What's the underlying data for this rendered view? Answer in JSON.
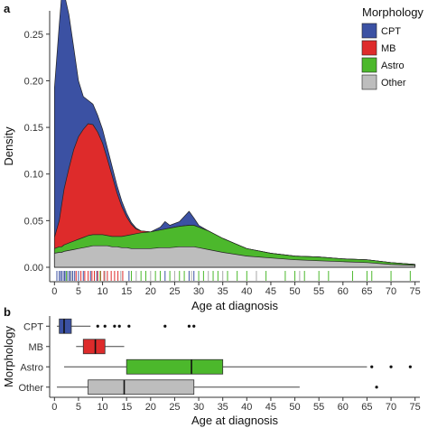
{
  "chart_data": [
    {
      "panel_label": "a",
      "type": "area",
      "xlabel": "Age at diagnosis",
      "ylabel": "Density",
      "xlim": [
        -1,
        76
      ],
      "ylim": [
        0,
        0.275
      ],
      "xticks": [
        0,
        5,
        10,
        15,
        20,
        25,
        30,
        35,
        40,
        45,
        50,
        55,
        60,
        65,
        70,
        75
      ],
      "yticks": [
        0,
        0.05,
        0.1,
        0.15,
        0.2,
        0.25
      ],
      "ytick_labels": [
        "0.00",
        "0.05",
        "0.10",
        "0.15",
        "0.20",
        "0.25"
      ],
      "stacked": true,
      "grid": false,
      "legend": {
        "title": "Morphology",
        "position": "top-right",
        "entries": [
          "CPT",
          "MB",
          "Astro",
          "Other"
        ]
      },
      "x": [
        0,
        1,
        1.5,
        2,
        3,
        4,
        5,
        6,
        7,
        8,
        9,
        10,
        11,
        12,
        13,
        14,
        15,
        16,
        17,
        18,
        20,
        22,
        23,
        24,
        26,
        28,
        29,
        30,
        32,
        35,
        40,
        45,
        50,
        55,
        60,
        65,
        70,
        75
      ],
      "series": [
        {
          "name": "Other",
          "color": "#bdbdbd",
          "values": [
            0.015,
            0.016,
            0.016,
            0.017,
            0.018,
            0.019,
            0.02,
            0.021,
            0.022,
            0.023,
            0.023,
            0.023,
            0.023,
            0.022,
            0.022,
            0.021,
            0.021,
            0.02,
            0.02,
            0.02,
            0.02,
            0.021,
            0.021,
            0.021,
            0.022,
            0.022,
            0.022,
            0.021,
            0.019,
            0.016,
            0.012,
            0.01,
            0.008,
            0.007,
            0.006,
            0.005,
            0.003,
            0.002
          ]
        },
        {
          "name": "Astro",
          "color": "#4cb82c",
          "values": [
            0.005,
            0.006,
            0.006,
            0.007,
            0.008,
            0.009,
            0.01,
            0.011,
            0.012,
            0.012,
            0.012,
            0.012,
            0.011,
            0.011,
            0.011,
            0.012,
            0.013,
            0.015,
            0.016,
            0.017,
            0.018,
            0.019,
            0.02,
            0.021,
            0.022,
            0.023,
            0.023,
            0.022,
            0.02,
            0.015,
            0.008,
            0.005,
            0.004,
            0.004,
            0.003,
            0.003,
            0.002,
            0.001
          ]
        },
        {
          "name": "MB",
          "color": "#de2b2b",
          "values": [
            0.012,
            0.028,
            0.045,
            0.06,
            0.08,
            0.098,
            0.11,
            0.116,
            0.12,
            0.118,
            0.11,
            0.098,
            0.082,
            0.065,
            0.047,
            0.032,
            0.02,
            0.011,
            0.005,
            0.002,
            0.0,
            0.0,
            0.0,
            0.0,
            0.0,
            0.0,
            0.0,
            0.0,
            0.0,
            0.0,
            0.0,
            0.0,
            0.0,
            0.0,
            0.0,
            0.0,
            0.0,
            0.0
          ]
        },
        {
          "name": "CPT",
          "color": "#3b51a3",
          "values": [
            0.16,
            0.21,
            0.225,
            0.21,
            0.165,
            0.11,
            0.06,
            0.035,
            0.025,
            0.022,
            0.018,
            0.015,
            0.012,
            0.01,
            0.008,
            0.006,
            0.004,
            0.002,
            0.001,
            0.0,
            0.0,
            0.003,
            0.008,
            0.003,
            0.005,
            0.015,
            0.008,
            0.002,
            0.0,
            0.0,
            0.0,
            0.0,
            0.0,
            0.0,
            0.0,
            0.0,
            0.0,
            0.0
          ]
        }
      ],
      "rug": [
        {
          "morphology": "CPT",
          "color": "#3b51a3",
          "x": [
            0.5,
            1,
            1.3,
            1.6,
            2,
            2.2,
            2.6,
            3,
            3.3,
            3.8,
            4.2,
            5,
            6,
            7.5,
            8.8,
            15.5,
            23,
            28,
            29
          ]
        },
        {
          "morphology": "MB",
          "color": "#de2b2b",
          "x": [
            4.5,
            5.5,
            6.3,
            7,
            7.8,
            8.3,
            9,
            9.6,
            10.3,
            11,
            11.8,
            12.5,
            13.2,
            14.2
          ]
        },
        {
          "morphology": "Astro",
          "color": "#4cb82c",
          "x": [
            2.5,
            9.5,
            16,
            18,
            19,
            21,
            22,
            24,
            26,
            27,
            30,
            31,
            33,
            34,
            36,
            38,
            40,
            44,
            48,
            50,
            52,
            55,
            57,
            62,
            65,
            66,
            70,
            74
          ]
        },
        {
          "morphology": "Other",
          "color": "#a8a8a8",
          "x": [
            3.5,
            10.5,
            13.8,
            17,
            20,
            25,
            28.5,
            32,
            35,
            42,
            51
          ]
        }
      ]
    },
    {
      "panel_label": "b",
      "type": "box",
      "xlabel": "Age at diagnosis",
      "ylabel": "Morphology",
      "xlim": [
        -1,
        76
      ],
      "xticks": [
        0,
        5,
        10,
        15,
        20,
        25,
        30,
        35,
        40,
        45,
        50,
        55,
        60,
        65,
        70,
        75
      ],
      "categories": [
        "CPT",
        "MB",
        "Astro",
        "Other"
      ],
      "boxes": [
        {
          "name": "CPT",
          "color": "#3b51a3",
          "whisker_low": 0.5,
          "q1": 1,
          "median": 2,
          "q3": 3.5,
          "whisker_high": 7.5,
          "outliers": [
            9,
            10.5,
            12.5,
            13.5,
            15.5,
            23,
            28,
            29
          ]
        },
        {
          "name": "MB",
          "color": "#de2b2b",
          "whisker_low": 4.5,
          "q1": 6,
          "median": 8.5,
          "q3": 10.5,
          "whisker_high": 14.5,
          "outliers": []
        },
        {
          "name": "Astro",
          "color": "#4cb82c",
          "whisker_low": 2,
          "q1": 15,
          "median": 28.5,
          "q3": 35,
          "whisker_high": 65,
          "outliers": [
            66,
            70,
            74
          ]
        },
        {
          "name": "Other",
          "color": "#bdbdbd",
          "whisker_low": 0.5,
          "q1": 7,
          "median": 14.5,
          "q3": 29,
          "whisker_high": 51,
          "outliers": [
            67
          ]
        }
      ]
    }
  ]
}
